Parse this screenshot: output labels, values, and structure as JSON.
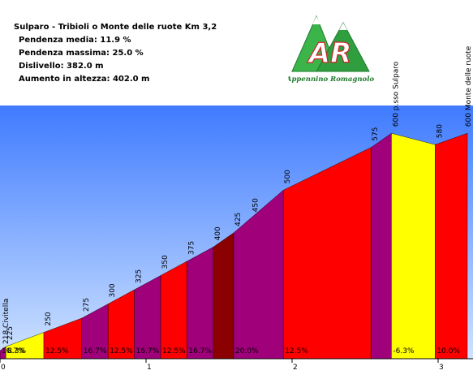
{
  "info": {
    "title": "Sulparo - Tribioli o Monte delle ruote Km 3,2",
    "pendenza_media": "Pendenza media: 11.9 %",
    "pendenza_massima": "Pendenza massima: 25.0 %",
    "dislivello": "Dislivello: 382.0 m",
    "aumento": "Aumento in altezza: 402.0 m"
  },
  "logo": {
    "text": "AR",
    "subtitle": "Appennino Romagnolo"
  },
  "colors": {
    "sky_top": "#3f7bff",
    "sky_bottom": "#cfe3ff",
    "logo_green": "#3bb54a",
    "logo_red": "#d4222a",
    "band_0_10": "#ffff00",
    "band_10_15": "#ff0000",
    "band_15_20": "#a0007a",
    "band_20_plus": "#8b0000",
    "descent": "#ffff00"
  },
  "chart_data": {
    "type": "area",
    "title": "Sulparo - Tribioli o Monte delle ruote Km 3,2",
    "xlabel": "",
    "ylabel": "",
    "xlim": [
      0,
      3.2
    ],
    "x_ticks": [
      "0",
      "1",
      "2",
      "3"
    ],
    "x_tick_values": [
      0,
      1,
      2,
      3
    ],
    "profile": [
      {
        "km": 0.0,
        "alt": 218
      },
      {
        "km": 0.04,
        "alt": 225
      },
      {
        "km": 0.3,
        "alt": 250
      },
      {
        "km": 0.56,
        "alt": 275
      },
      {
        "km": 0.74,
        "alt": 300
      },
      {
        "km": 0.92,
        "alt": 325
      },
      {
        "km": 1.1,
        "alt": 350
      },
      {
        "km": 1.28,
        "alt": 375
      },
      {
        "km": 1.46,
        "alt": 400
      },
      {
        "km": 1.6,
        "alt": 425
      },
      {
        "km": 1.72,
        "alt": 450
      },
      {
        "km": 1.94,
        "alt": 500
      },
      {
        "km": 2.54,
        "alt": 575
      },
      {
        "km": 2.68,
        "alt": 600
      },
      {
        "km": 2.98,
        "alt": 580
      },
      {
        "km": 3.2,
        "alt": 600
      }
    ],
    "segments": [
      {
        "from": 0.0,
        "to": 0.04,
        "grade": "16.7%",
        "color": "#a0007a"
      },
      {
        "from": 0.04,
        "to": 0.3,
        "grade": "8.3%",
        "color": "#ffff00"
      },
      {
        "from": 0.3,
        "to": 0.56,
        "grade": "12.5%",
        "color": "#ff0000"
      },
      {
        "from": 0.56,
        "to": 0.74,
        "grade": "16.7%",
        "color": "#a0007a"
      },
      {
        "from": 0.74,
        "to": 0.92,
        "grade": "12.5%",
        "color": "#ff0000"
      },
      {
        "from": 0.92,
        "to": 1.1,
        "grade": "16.7%",
        "color": "#a0007a"
      },
      {
        "from": 1.1,
        "to": 1.28,
        "grade": "12.5%",
        "color": "#ff0000"
      },
      {
        "from": 1.28,
        "to": 1.46,
        "grade": "16.7%",
        "color": "#a0007a"
      },
      {
        "from": 1.46,
        "to": 1.6,
        "grade": "",
        "color": "#8b0000"
      },
      {
        "from": 1.6,
        "to": 1.94,
        "grade": "20.0%",
        "color": "#a0007a"
      },
      {
        "from": 1.94,
        "to": 2.54,
        "grade": "12.5%",
        "color": "#ff0000"
      },
      {
        "from": 2.54,
        "to": 2.68,
        "grade": "",
        "color": "#a0007a"
      },
      {
        "from": 2.68,
        "to": 2.98,
        "grade": "-6.3%",
        "color": "#ffff00"
      },
      {
        "from": 2.98,
        "to": 3.2,
        "grade": "10.0%",
        "color": "#ff0000"
      }
    ],
    "point_labels": [
      {
        "km": 0.0,
        "alt": 218,
        "text": "218 Civitella"
      },
      {
        "km": 0.04,
        "alt": 225,
        "text": "225"
      },
      {
        "km": 0.3,
        "alt": 250,
        "text": "250"
      },
      {
        "km": 0.56,
        "alt": 275,
        "text": "275"
      },
      {
        "km": 0.74,
        "alt": 300,
        "text": "300"
      },
      {
        "km": 0.92,
        "alt": 325,
        "text": "325"
      },
      {
        "km": 1.1,
        "alt": 350,
        "text": "350"
      },
      {
        "km": 1.28,
        "alt": 375,
        "text": "375"
      },
      {
        "km": 1.46,
        "alt": 400,
        "text": "400"
      },
      {
        "km": 1.6,
        "alt": 425,
        "text": "425"
      },
      {
        "km": 1.72,
        "alt": 450,
        "text": "450"
      },
      {
        "km": 1.94,
        "alt": 500,
        "text": "500"
      },
      {
        "km": 2.54,
        "alt": 575,
        "text": "575"
      },
      {
        "km": 2.68,
        "alt": 600,
        "text": "600 p.sso Sulparo"
      },
      {
        "km": 2.98,
        "alt": 580,
        "text": "580"
      },
      {
        "km": 3.2,
        "alt": 600,
        "text": "600 Monte delle ruote"
      }
    ]
  }
}
